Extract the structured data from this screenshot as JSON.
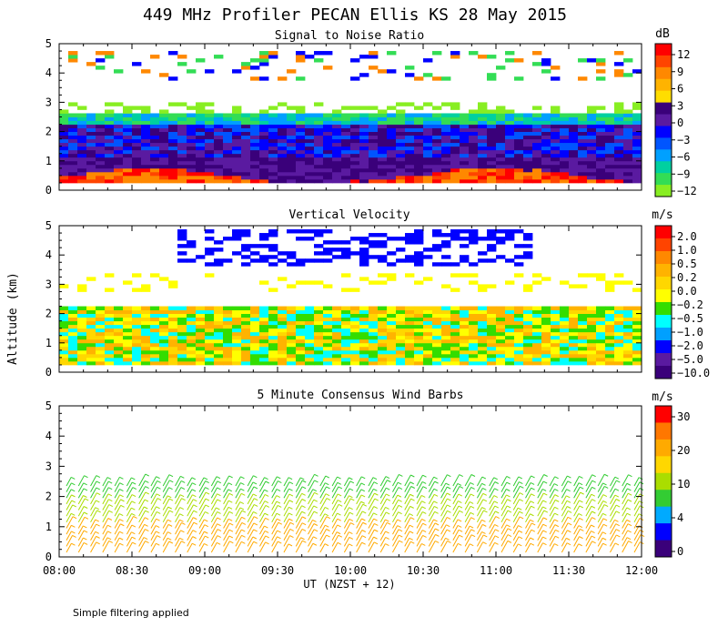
{
  "title": "449 MHz Profiler PECAN Ellis KS 28 May 2015",
  "y_axis_label": "Altitude (km)",
  "x_axis_label": "UT  (NZST + 12)",
  "footnote": "Simple filtering applied",
  "chart_data": [
    {
      "type": "heatmap",
      "title": "Signal to Noise Ratio",
      "units": "dB",
      "x_range": [
        "08:00",
        "12:00"
      ],
      "x_ticks": [
        "08:00",
        "08:30",
        "09:00",
        "09:30",
        "10:00",
        "10:30",
        "11:00",
        "11:30",
        "12:00"
      ],
      "ylim": [
        0,
        5
      ],
      "y_ticks": [
        "0",
        "1",
        "2",
        "3",
        "4",
        "5"
      ],
      "legend_labels": [
        "12",
        "9",
        "6",
        "3",
        "0",
        "−3",
        "−6",
        "−9",
        "−12"
      ],
      "legend_colors": [
        "#ff0000",
        "#ff4400",
        "#ff8800",
        "#ffb300",
        "#ffdd00",
        "#3a007a",
        "#5a1aa0",
        "#0000ff",
        "#0055ff",
        "#00a0ff",
        "#00d0a0",
        "#33dd55",
        "#88ee22"
      ]
    },
    {
      "type": "heatmap",
      "title": "Vertical Velocity",
      "units": "m/s",
      "x_range": [
        "08:00",
        "12:00"
      ],
      "ylim": [
        0,
        5
      ],
      "y_ticks": [
        "0",
        "1",
        "2",
        "3",
        "4",
        "5"
      ],
      "legend_labels": [
        "2.0",
        "1.0",
        "0.5",
        "0.2",
        "0.0",
        "−0.2",
        "−0.5",
        "−1.0",
        "−2.0",
        "−5.0",
        "−10.0"
      ],
      "legend_colors": [
        "#ff0000",
        "#ff4400",
        "#ff8800",
        "#ffb300",
        "#ffd700",
        "#ffff00",
        "#33dd00",
        "#00ffff",
        "#00a0ff",
        "#0000ff",
        "#5a1aa0",
        "#3a007a"
      ]
    },
    {
      "type": "scatter",
      "title": "5 Minute Consensus Wind Barbs",
      "units": "m/s",
      "x_range": [
        "08:00",
        "12:00"
      ],
      "ylim": [
        0,
        5
      ],
      "y_ticks": [
        "0",
        "1",
        "2",
        "3",
        "4",
        "5"
      ],
      "legend_labels": [
        "30",
        "20",
        "10",
        "4",
        "0"
      ],
      "legend_colors": [
        "#ff0000",
        "#ff7700",
        "#ffaa00",
        "#ffd700",
        "#aadd00",
        "#33cc33",
        "#00aaff",
        "#0000ff",
        "#3a007a"
      ]
    }
  ]
}
